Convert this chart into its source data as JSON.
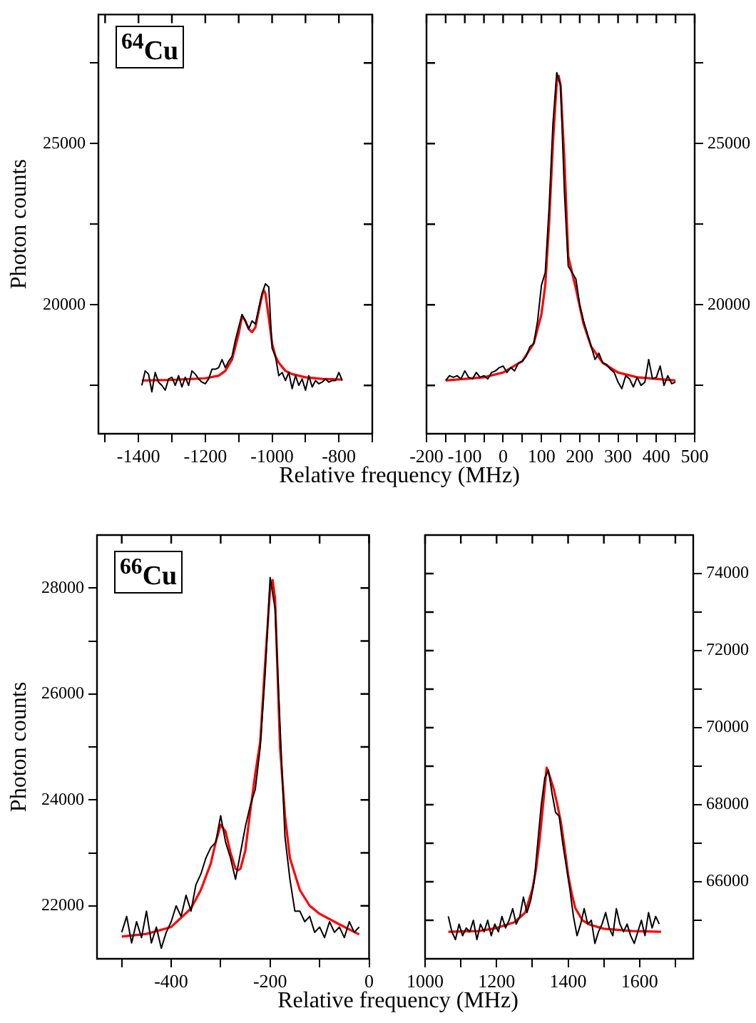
{
  "chart_data": [
    {
      "type": "line",
      "xlabel": "Relative frequency (MHz)",
      "ylabel": "Photon counts",
      "annotations": [
        "$^{64}$Cu"
      ],
      "xlim": [
        -1520,
        -700
      ],
      "xticks": [
        {
          "value": -1500,
          "label": null
        },
        -1400,
        {
          "value": -1300,
          "label": null
        },
        -1200,
        {
          "value": -1100,
          "label": null
        },
        -1000,
        {
          "value": -900,
          "label": null
        },
        -800,
        {
          "value": -700,
          "label": null
        }
      ],
      "ylim": [
        16000,
        29000
      ],
      "yticks": [
        {
          "value": 17500,
          "label": null
        },
        20000,
        {
          "value": 22500,
          "label": null
        },
        25000,
        {
          "value": 27500,
          "label": null
        }
      ],
      "series": [
        {
          "color": "#000000",
          "x": [
            -1390,
            -1380,
            -1370,
            -1360,
            -1350,
            -1340,
            -1330,
            -1320,
            -1310,
            -1300,
            -1290,
            -1280,
            -1270,
            -1260,
            -1250,
            -1240,
            -1230,
            -1220,
            -1210,
            -1200,
            -1190,
            -1180,
            -1170,
            -1160,
            -1150,
            -1140,
            -1130,
            -1120,
            -1110,
            -1100,
            -1090,
            -1080,
            -1070,
            -1060,
            -1050,
            -1040,
            -1030,
            -1020,
            -1010,
            -1000,
            -990,
            -980,
            -970,
            -960,
            -950,
            -940,
            -930,
            -920,
            -910,
            -900,
            -890,
            -880,
            -870,
            -860,
            -850,
            -840,
            -830,
            -820,
            -810,
            -800,
            -790
          ],
          "values": [
            17500,
            17950,
            17850,
            17300,
            17900,
            17600,
            17500,
            17350,
            17700,
            17750,
            17500,
            17800,
            17450,
            17750,
            17500,
            17950,
            17850,
            17700,
            17600,
            17550,
            17700,
            18000,
            18000,
            18050,
            18300,
            18050,
            18250,
            18400,
            18900,
            19300,
            19700,
            19500,
            19250,
            19500,
            19400,
            19900,
            20350,
            20650,
            20550,
            18650,
            18400,
            17800,
            17900,
            17650,
            17900,
            17400,
            17800,
            17500,
            17700,
            17350,
            17800,
            17450,
            17650,
            17550,
            17600,
            17700,
            17600,
            17650,
            17650,
            17900,
            17650
          ]
        },
        {
          "color": "#ff0000",
          "x": [
            -1390,
            -1300,
            -1200,
            -1160,
            -1140,
            -1120,
            -1100,
            -1090,
            -1080,
            -1070,
            -1060,
            -1050,
            -1040,
            -1030,
            -1025,
            -1020,
            -1010,
            -1000,
            -990,
            -980,
            -960,
            -940,
            -900,
            -850,
            -790
          ],
          "values": [
            17650,
            17670,
            17720,
            17800,
            17950,
            18300,
            19100,
            19650,
            19500,
            19250,
            19150,
            19300,
            19800,
            20300,
            20450,
            20350,
            19600,
            18800,
            18400,
            18200,
            17950,
            17850,
            17750,
            17700,
            17680
          ]
        }
      ]
    },
    {
      "type": "line",
      "xlim": [
        -200,
        500
      ],
      "xticks": [
        -200,
        {
          "value": -150,
          "label": null
        },
        -100,
        {
          "value": -50,
          "label": null
        },
        0,
        {
          "value": 50,
          "label": null
        },
        100,
        {
          "value": 150,
          "label": null
        },
        200,
        {
          "value": 250,
          "label": null
        },
        300,
        {
          "value": 350,
          "label": null
        },
        400,
        {
          "value": 450,
          "label": null
        },
        500
      ],
      "ylim": [
        16000,
        29000
      ],
      "yticks": [
        {
          "value": 17500,
          "label": null
        },
        20000,
        {
          "value": 22500,
          "label": null
        },
        25000,
        {
          "value": 27500,
          "label": null
        }
      ],
      "series": [
        {
          "color": "#000000",
          "x": [
            -150,
            -140,
            -130,
            -120,
            -110,
            -100,
            -90,
            -80,
            -70,
            -60,
            -50,
            -40,
            -30,
            -20,
            -10,
            0,
            10,
            20,
            30,
            40,
            50,
            60,
            70,
            80,
            90,
            100,
            110,
            120,
            130,
            140,
            150,
            160,
            170,
            180,
            190,
            200,
            210,
            220,
            230,
            240,
            250,
            260,
            270,
            280,
            290,
            300,
            310,
            320,
            330,
            340,
            350,
            360,
            370,
            380,
            390,
            400,
            410,
            420,
            430,
            440,
            450
          ],
          "values": [
            17650,
            17800,
            17750,
            17800,
            17700,
            17950,
            17750,
            17700,
            17900,
            17750,
            17800,
            17700,
            17900,
            17950,
            18050,
            18100,
            17900,
            18050,
            17950,
            18200,
            18250,
            18400,
            18700,
            18800,
            19500,
            20600,
            21000,
            23000,
            25600,
            27200,
            26800,
            23500,
            21200,
            21000,
            20800,
            20000,
            19500,
            19100,
            18700,
            18300,
            18500,
            18200,
            18150,
            18000,
            17900,
            17600,
            17400,
            17800,
            17700,
            17450,
            17750,
            17500,
            17600,
            18300,
            17700,
            17750,
            18100,
            17500,
            17800,
            17550,
            17600
          ]
        },
        {
          "color": "#ff0000",
          "x": [
            -150,
            -50,
            0,
            50,
            80,
            100,
            110,
            120,
            130,
            140,
            145,
            150,
            160,
            170,
            190,
            210,
            230,
            260,
            300,
            350,
            450
          ],
          "values": [
            17650,
            17750,
            17900,
            18250,
            18800,
            19700,
            20600,
            22500,
            25000,
            26900,
            27100,
            26800,
            24500,
            21500,
            20500,
            19400,
            18700,
            18200,
            17900,
            17750,
            17650
          ]
        }
      ]
    },
    {
      "type": "line",
      "xlabel": "Relative frequency (MHz)",
      "ylabel": "Photon counts",
      "annotations": [
        "$^{66}$Cu"
      ],
      "xlim": [
        -550,
        0
      ],
      "xticks": [
        {
          "value": -500,
          "label": null
        },
        -400,
        {
          "value": -300,
          "label": null
        },
        -200,
        {
          "value": -100,
          "label": null
        },
        0
      ],
      "ylim": [
        21000,
        29000
      ],
      "yticks": [
        22000,
        {
          "value": 23000,
          "label": null
        },
        24000,
        {
          "value": 25000,
          "label": null
        },
        26000,
        {
          "value": 27000,
          "label": null
        },
        28000
      ],
      "series": [
        {
          "color": "#000000",
          "x": [
            -500,
            -490,
            -480,
            -470,
            -460,
            -450,
            -440,
            -430,
            -420,
            -410,
            -400,
            -390,
            -380,
            -370,
            -360,
            -350,
            -340,
            -330,
            -320,
            -310,
            -300,
            -290,
            -280,
            -270,
            -260,
            -250,
            -240,
            -230,
            -220,
            -210,
            -200,
            -190,
            -180,
            -170,
            -160,
            -150,
            -140,
            -130,
            -120,
            -110,
            -100,
            -90,
            -80,
            -70,
            -60,
            -50,
            -40,
            -30,
            -20
          ],
          "values": [
            21500,
            21800,
            21300,
            21700,
            21400,
            21900,
            21300,
            21600,
            21200,
            21500,
            21700,
            22000,
            21800,
            22200,
            21900,
            22400,
            22600,
            22900,
            23100,
            23200,
            23700,
            23200,
            22900,
            22500,
            23000,
            23500,
            23900,
            24200,
            25000,
            26400,
            28200,
            27600,
            25400,
            23300,
            22500,
            21900,
            21900,
            21700,
            21800,
            21500,
            21600,
            21400,
            21700,
            21500,
            21600,
            21400,
            21700,
            21500,
            21600
          ]
        },
        {
          "color": "#ff0000",
          "x": [
            -500,
            -450,
            -400,
            -360,
            -340,
            -320,
            -310,
            -300,
            -290,
            -280,
            -270,
            -265,
            -260,
            -250,
            -240,
            -230,
            -220,
            -210,
            -200,
            -195,
            -190,
            -180,
            -170,
            -160,
            -140,
            -120,
            -100,
            -60,
            -20
          ],
          "values": [
            21420,
            21470,
            21600,
            21950,
            22300,
            22800,
            23200,
            23530,
            23400,
            23000,
            22700,
            22670,
            22700,
            23050,
            23800,
            24500,
            25100,
            26600,
            28000,
            28150,
            27800,
            25000,
            23700,
            22900,
            22300,
            22000,
            21850,
            21650,
            21460
          ]
        }
      ]
    },
    {
      "type": "line",
      "xlim": [
        1000,
        1750
      ],
      "xticks": [
        1000,
        {
          "value": 1100,
          "label": null
        },
        1200,
        {
          "value": 1300,
          "label": null
        },
        1400,
        {
          "value": 1500,
          "label": null
        },
        1600,
        {
          "value": 1700,
          "label": null
        }
      ],
      "ylim": [
        64000,
        75000
      ],
      "yticks": [
        {
          "value": 65000,
          "label": null
        },
        66000,
        {
          "value": 67000,
          "label": null
        },
        68000,
        {
          "value": 69000,
          "label": null
        },
        70000,
        {
          "value": 71000,
          "label": null
        },
        72000,
        {
          "value": 73000,
          "label": null
        },
        74000
      ],
      "series": [
        {
          "color": "#000000",
          "x": [
            1065,
            1075,
            1085,
            1095,
            1105,
            1115,
            1125,
            1135,
            1145,
            1155,
            1165,
            1175,
            1185,
            1195,
            1205,
            1215,
            1225,
            1235,
            1245,
            1255,
            1265,
            1275,
            1285,
            1295,
            1305,
            1315,
            1325,
            1335,
            1345,
            1355,
            1365,
            1375,
            1385,
            1395,
            1405,
            1415,
            1425,
            1435,
            1445,
            1455,
            1465,
            1475,
            1485,
            1495,
            1505,
            1515,
            1525,
            1535,
            1545,
            1555,
            1565,
            1575,
            1585,
            1595,
            1605,
            1615,
            1625,
            1635,
            1645,
            1655
          ],
          "values": [
            65100,
            64700,
            64500,
            64900,
            64600,
            64800,
            64700,
            65000,
            64500,
            64900,
            64700,
            65000,
            64600,
            64900,
            64700,
            65100,
            64800,
            65000,
            65300,
            64900,
            65100,
            65600,
            65200,
            65500,
            66000,
            67000,
            68000,
            68700,
            68900,
            68300,
            67800,
            67700,
            67000,
            66400,
            65800,
            65100,
            64600,
            64900,
            65300,
            64900,
            65000,
            64400,
            64700,
            64900,
            65200,
            64800,
            64600,
            65300,
            64900,
            64700,
            64900,
            64600,
            64400,
            64700,
            65000,
            64600,
            65200,
            64800,
            65100,
            64900
          ]
        },
        {
          "color": "#ff0000",
          "x": [
            1065,
            1150,
            1200,
            1250,
            1280,
            1300,
            1310,
            1320,
            1330,
            1340,
            1350,
            1360,
            1370,
            1380,
            1390,
            1400,
            1410,
            1420,
            1440,
            1460,
            1500,
            1580,
            1660
          ],
          "values": [
            64700,
            64720,
            64800,
            64950,
            65200,
            65800,
            66300,
            67050,
            68000,
            68960,
            68700,
            68400,
            68000,
            67540,
            66900,
            66190,
            65700,
            65320,
            65000,
            64890,
            64780,
            64720,
            64700
          ]
        }
      ]
    }
  ]
}
